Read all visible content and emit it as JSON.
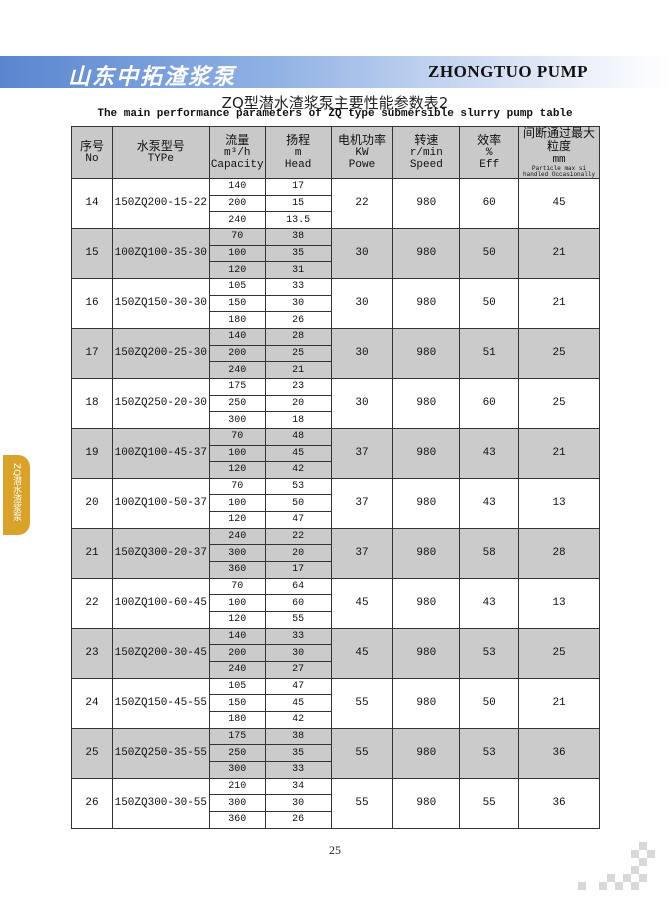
{
  "header": {
    "brand_cn": "山东中拓渣浆泵",
    "brand_en": "ZHONGTUO  PUMP"
  },
  "title_cn": "ZQ型潜水渣浆泵主要性能参数表2",
  "title_en": "The main performance parameters of ZQ type submersible slurry pump table",
  "side_tab": "ZQ潜水渣浆泵",
  "table": {
    "headers": [
      {
        "cn": "序号",
        "en": "No"
      },
      {
        "cn": "水泵型号",
        "en": "TYPe"
      },
      {
        "cn": "流量",
        "unit": "m³/h",
        "en": "Capacity"
      },
      {
        "cn": "扬程",
        "unit": "m",
        "en": "Head"
      },
      {
        "cn": "电机功率",
        "unit": "KW",
        "en": "Powe"
      },
      {
        "cn": "转速",
        "unit": "r/min",
        "en": "Speed"
      },
      {
        "cn": "效率",
        "unit": "%",
        "en": "Eff"
      },
      {
        "cn": "间断通过最大粒度",
        "unit": "mm",
        "en": "Particle max si handled Occasionally"
      }
    ],
    "rows": [
      {
        "no": "14",
        "type": "150ZQ200-15-22",
        "capacity": [
          "140",
          "200",
          "240"
        ],
        "head": [
          "17",
          "15",
          "13.5"
        ],
        "power": "22",
        "speed": "980",
        "eff": "60",
        "particle": "45"
      },
      {
        "no": "15",
        "type": "100ZQ100-35-30",
        "capacity": [
          "70",
          "100",
          "120"
        ],
        "head": [
          "38",
          "35",
          "31"
        ],
        "power": "30",
        "speed": "980",
        "eff": "50",
        "particle": "21"
      },
      {
        "no": "16",
        "type": "150ZQ150-30-30",
        "capacity": [
          "105",
          "150",
          "180"
        ],
        "head": [
          "33",
          "30",
          "26"
        ],
        "power": "30",
        "speed": "980",
        "eff": "50",
        "particle": "21"
      },
      {
        "no": "17",
        "type": "150ZQ200-25-30",
        "capacity": [
          "140",
          "200",
          "240"
        ],
        "head": [
          "28",
          "25",
          "21"
        ],
        "power": "30",
        "speed": "980",
        "eff": "51",
        "particle": "25"
      },
      {
        "no": "18",
        "type": "150ZQ250-20-30",
        "capacity": [
          "175",
          "250",
          "300"
        ],
        "head": [
          "23",
          "20",
          "18"
        ],
        "power": "30",
        "speed": "980",
        "eff": "60",
        "particle": "25"
      },
      {
        "no": "19",
        "type": "100ZQ100-45-37",
        "capacity": [
          "70",
          "100",
          "120"
        ],
        "head": [
          "48",
          "45",
          "42"
        ],
        "power": "37",
        "speed": "980",
        "eff": "43",
        "particle": "21"
      },
      {
        "no": "20",
        "type": "100ZQ100-50-37",
        "capacity": [
          "70",
          "100",
          "120"
        ],
        "head": [
          "53",
          "50",
          "47"
        ],
        "power": "37",
        "speed": "980",
        "eff": "43",
        "particle": "13"
      },
      {
        "no": "21",
        "type": "150ZQ300-20-37",
        "capacity": [
          "240",
          "300",
          "360"
        ],
        "head": [
          "22",
          "20",
          "17"
        ],
        "power": "37",
        "speed": "980",
        "eff": "58",
        "particle": "28"
      },
      {
        "no": "22",
        "type": "100ZQ100-60-45",
        "capacity": [
          "70",
          "100",
          "120"
        ],
        "head": [
          "64",
          "60",
          "55"
        ],
        "power": "45",
        "speed": "980",
        "eff": "43",
        "particle": "13"
      },
      {
        "no": "23",
        "type": "150ZQ200-30-45",
        "capacity": [
          "140",
          "200",
          "240"
        ],
        "head": [
          "33",
          "30",
          "27"
        ],
        "power": "45",
        "speed": "980",
        "eff": "53",
        "particle": "25"
      },
      {
        "no": "24",
        "type": "150ZQ150-45-55",
        "capacity": [
          "105",
          "150",
          "180"
        ],
        "head": [
          "47",
          "45",
          "42"
        ],
        "power": "55",
        "speed": "980",
        "eff": "50",
        "particle": "21"
      },
      {
        "no": "25",
        "type": "150ZQ250-35-55",
        "capacity": [
          "175",
          "250",
          "300"
        ],
        "head": [
          "38",
          "35",
          "33"
        ],
        "power": "55",
        "speed": "980",
        "eff": "53",
        "particle": "36"
      },
      {
        "no": "26",
        "type": "150ZQ300-30-55",
        "capacity": [
          "210",
          "300",
          "360"
        ],
        "head": [
          "34",
          "30",
          "26"
        ],
        "power": "55",
        "speed": "980",
        "eff": "55",
        "particle": "36"
      }
    ]
  },
  "page_number": "25"
}
